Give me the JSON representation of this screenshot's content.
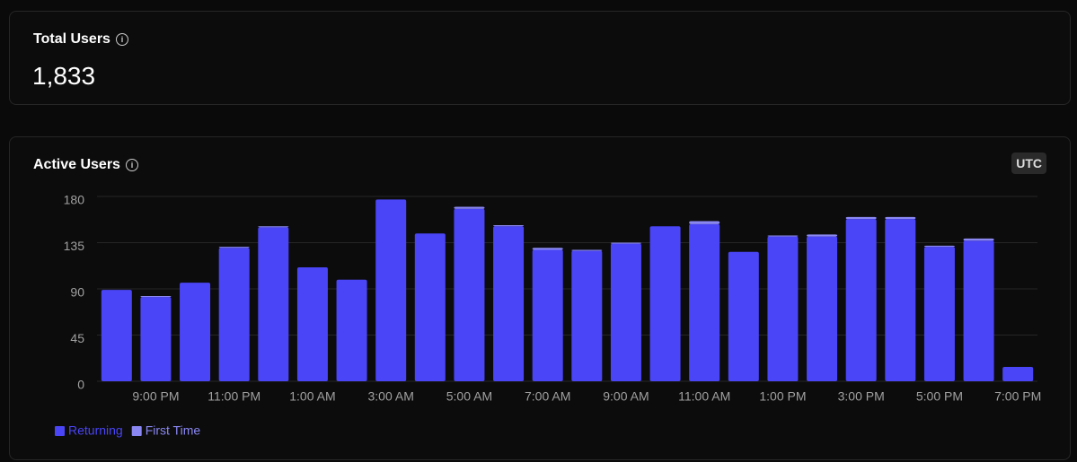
{
  "total_users": {
    "title": "Total Users",
    "value": "1,833"
  },
  "active_users": {
    "title": "Active Users",
    "timezone": "UTC"
  },
  "chart_data": {
    "type": "stacked_bar",
    "categories": [
      null,
      "9:00 PM",
      null,
      "11:00 PM",
      null,
      "1:00 AM",
      null,
      "3:00 AM",
      null,
      "5:00 AM",
      null,
      "7:00 AM",
      null,
      "9:00 AM",
      null,
      "11:00 AM",
      null,
      "1:00 PM",
      null,
      "3:00 PM",
      null,
      "5:00 PM",
      null,
      "7:00 PM"
    ],
    "series": [
      {
        "name": "Returning",
        "color": "#4a45f6",
        "values": [
          89,
          82,
          96,
          130,
          150,
          111,
          99,
          177,
          144,
          168,
          151,
          128,
          127,
          134,
          151,
          153,
          126,
          141,
          141,
          158,
          158,
          131,
          137,
          14
        ]
      },
      {
        "name": "First Time",
        "color": "#8a87f3",
        "values": [
          0,
          1,
          0,
          1,
          1,
          0,
          0,
          0,
          0,
          2,
          1,
          2,
          1,
          1,
          0,
          3,
          0,
          1,
          2,
          2,
          2,
          1,
          2,
          0
        ]
      }
    ],
    "ylim": [
      0,
      180
    ],
    "yticks": [
      0,
      45,
      90,
      135,
      180
    ],
    "grid": true,
    "legend": "bottom-left"
  }
}
